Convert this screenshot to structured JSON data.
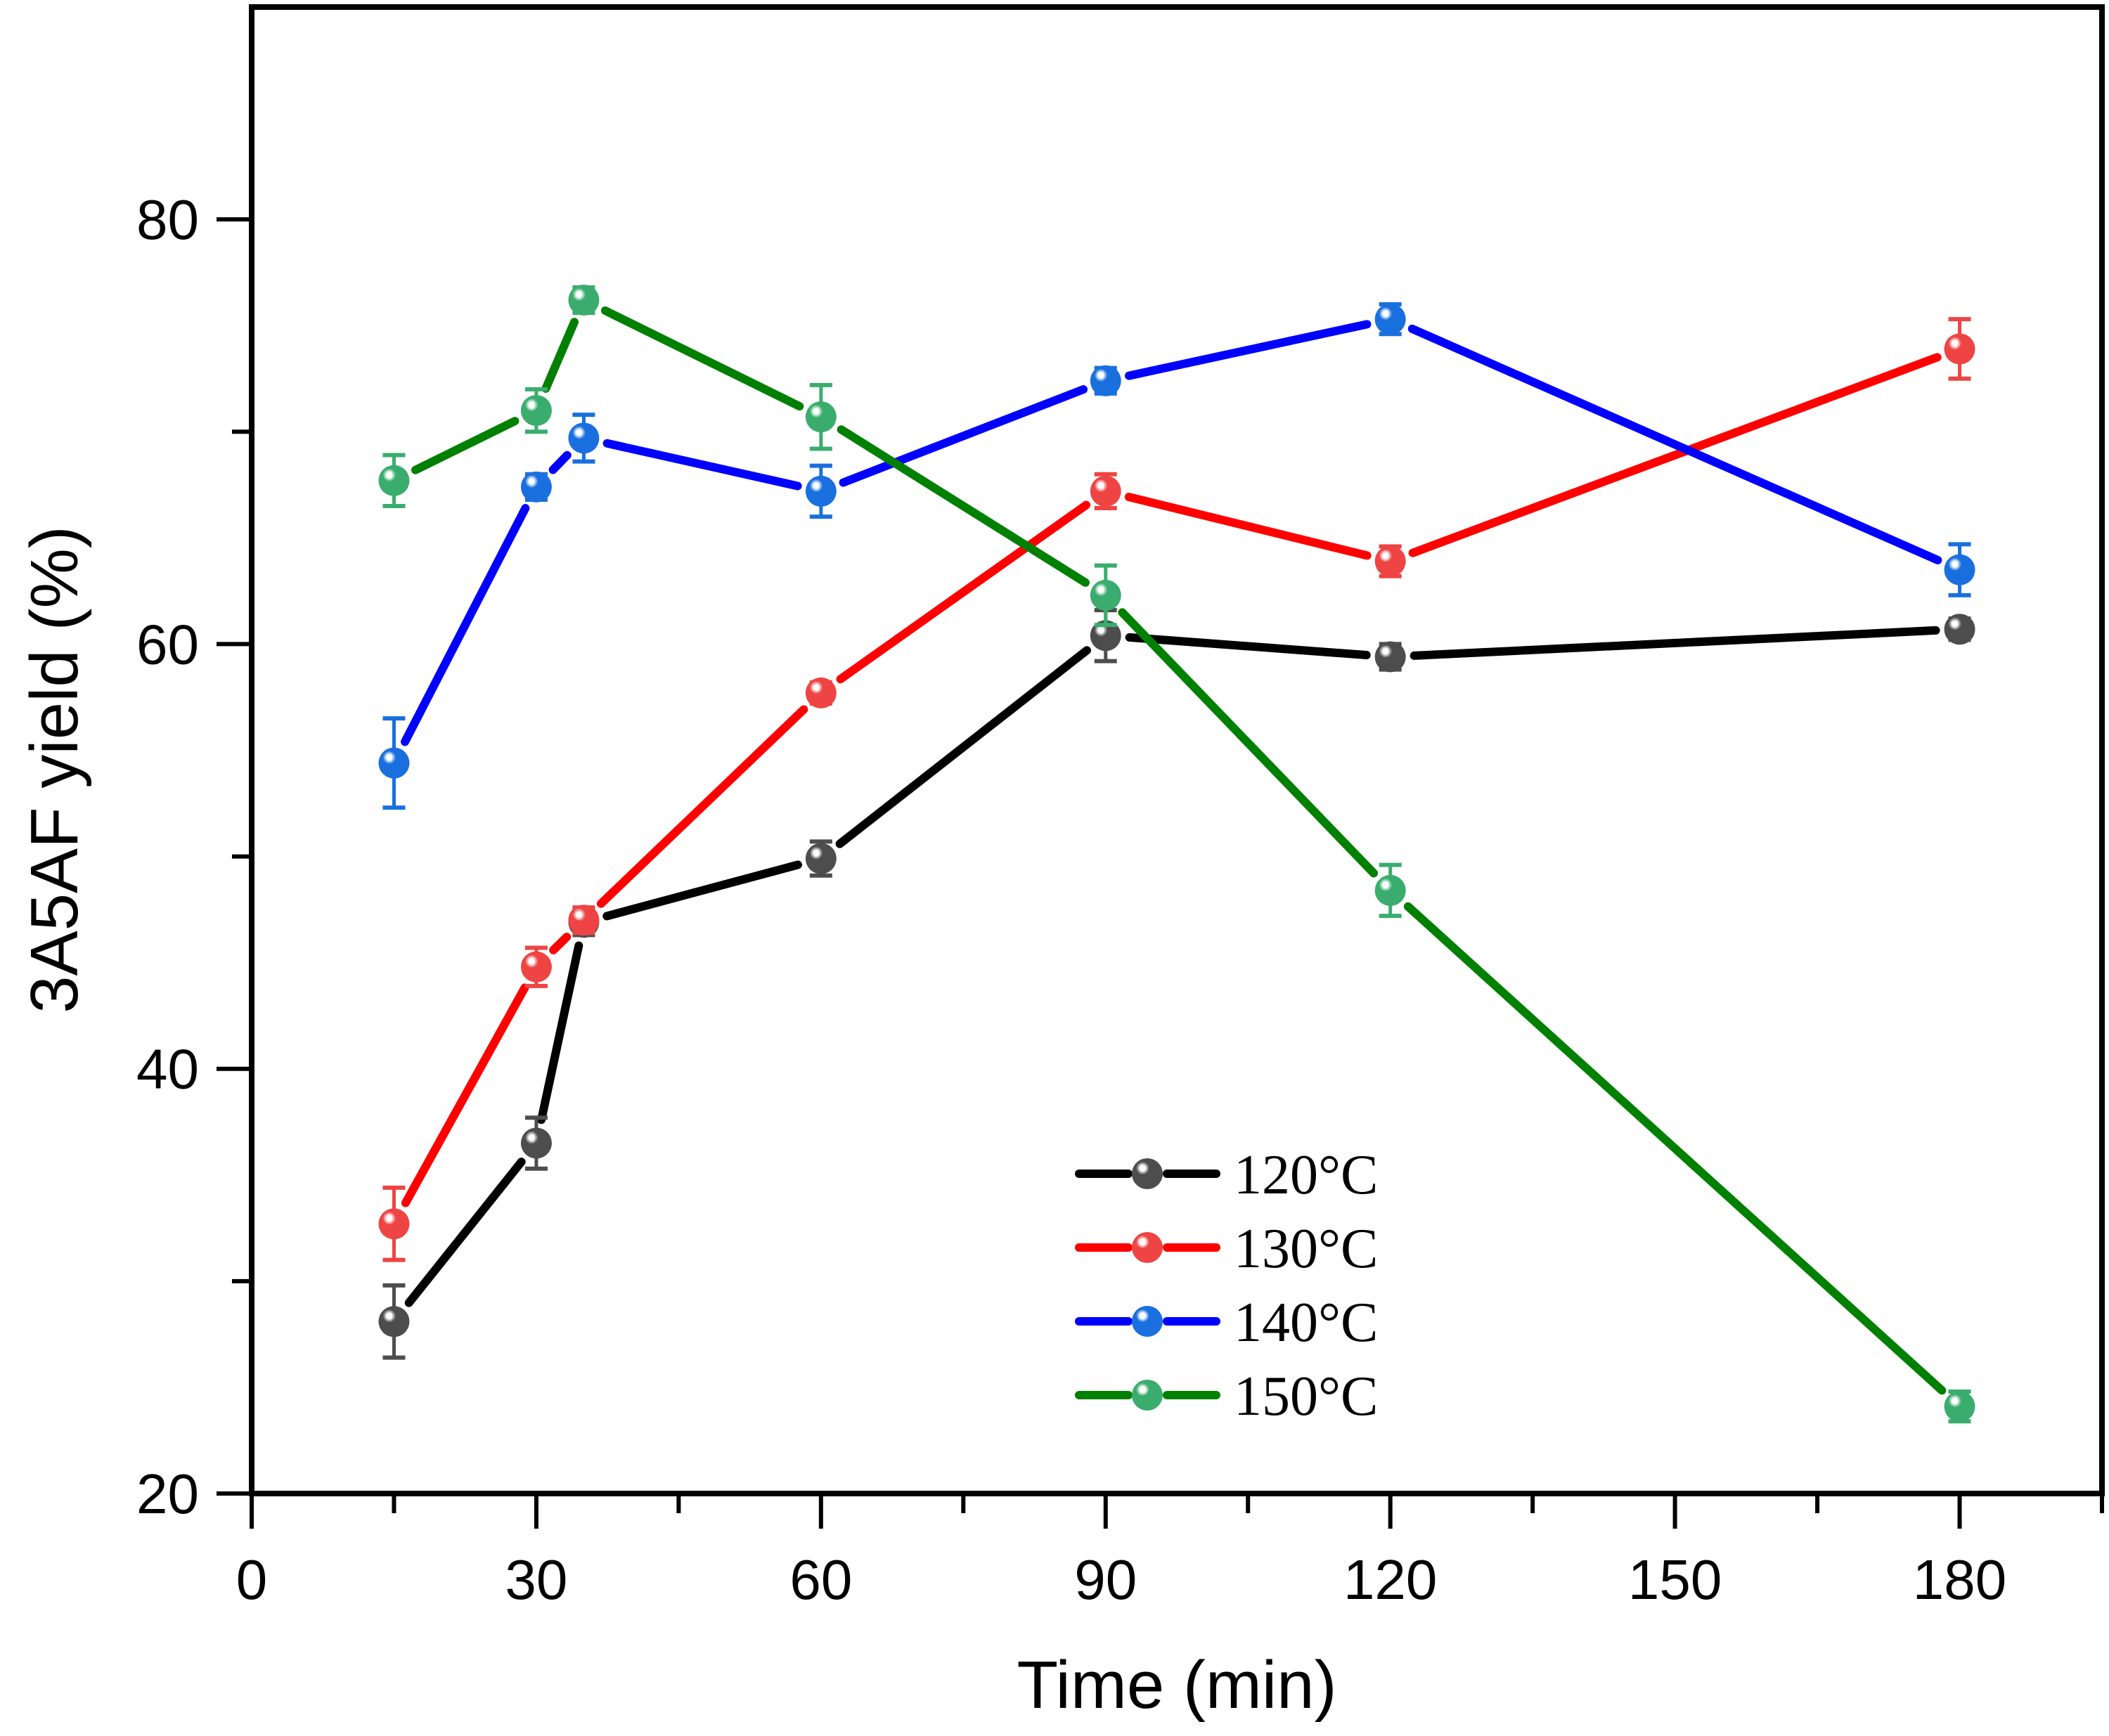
{
  "chart_data": {
    "type": "line",
    "title": "",
    "xlabel": "Time (min)",
    "ylabel": "3A5AF yield (%)",
    "xlim": [
      0,
      195
    ],
    "ylim": [
      20,
      90
    ],
    "x_ticks": [
      0,
      30,
      60,
      90,
      120,
      150,
      180
    ],
    "x_minor_ticks": [
      15,
      45,
      75,
      105,
      135,
      165,
      195
    ],
    "y_ticks": [
      20,
      40,
      60,
      80
    ],
    "y_minor_ticks": [
      30,
      50,
      70
    ],
    "x_tick_labels": [
      "0",
      "30",
      "60",
      "90",
      "120",
      "150",
      "180"
    ],
    "y_tick_labels": [
      "20",
      "40",
      "60",
      "80"
    ],
    "grid": false,
    "legend_position": "bottom-right",
    "x": [
      15,
      30,
      35,
      60,
      90,
      120,
      180
    ],
    "series": [
      {
        "name": "120°C",
        "line_color": "#000000",
        "marker_color": "#4d4d4d",
        "values": [
          28.1,
          36.5,
          46.9,
          49.9,
          60.4,
          59.4,
          60.7
        ],
        "errors": [
          1.7,
          1.2,
          0.6,
          0.8,
          1.2,
          0.6,
          0.5
        ]
      },
      {
        "name": "130°C",
        "line_color": "#ff0000",
        "marker_color": "#ee4444",
        "values": [
          32.7,
          44.8,
          47.0,
          57.7,
          67.2,
          63.9,
          73.9
        ],
        "errors": [
          1.7,
          0.9,
          0.6,
          0.5,
          0.8,
          0.7,
          1.4
        ]
      },
      {
        "name": "140°C",
        "line_color": "#0000ff",
        "marker_color": "#1a6fdf",
        "values": [
          54.4,
          67.4,
          69.7,
          67.2,
          72.4,
          75.3,
          63.5
        ],
        "errors": [
          2.1,
          0.6,
          1.1,
          1.2,
          0.6,
          0.7,
          1.2
        ]
      },
      {
        "name": "150°C",
        "line_color": "#008000",
        "marker_color": "#3aad6e",
        "values": [
          67.7,
          71.0,
          76.2,
          70.7,
          62.3,
          48.4,
          24.1
        ],
        "errors": [
          1.2,
          1.0,
          0.6,
          1.5,
          1.4,
          1.2,
          0.7
        ]
      }
    ]
  }
}
